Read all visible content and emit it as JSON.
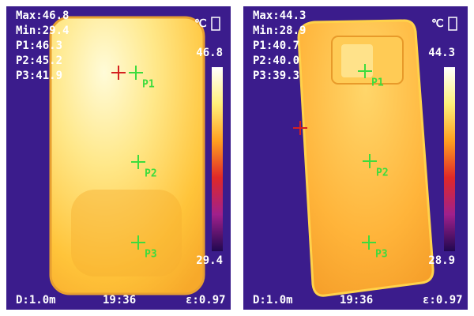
{
  "panels": [
    {
      "readouts": [
        "Max:46.8",
        "Min:29.4",
        "P1:46.3",
        "P2:45.2",
        "P3:41.9"
      ],
      "unit": "℃",
      "scale_max": "46.8",
      "scale_min": "29.4",
      "points": [
        "P1",
        "P2",
        "P3"
      ],
      "distance": "D:1.0m",
      "time": "19:36",
      "emissivity": "ε:0.97"
    },
    {
      "readouts": [
        "Max:44.3",
        "Min:28.9",
        "P1:40.7",
        "P2:40.0",
        "P3:39.3"
      ],
      "unit": "℃",
      "scale_max": "44.3",
      "scale_min": "28.9",
      "points": [
        "P1",
        "P2",
        "P3"
      ],
      "distance": "D:1.0m",
      "time": "19:36",
      "emissivity": "ε:0.97"
    }
  ]
}
